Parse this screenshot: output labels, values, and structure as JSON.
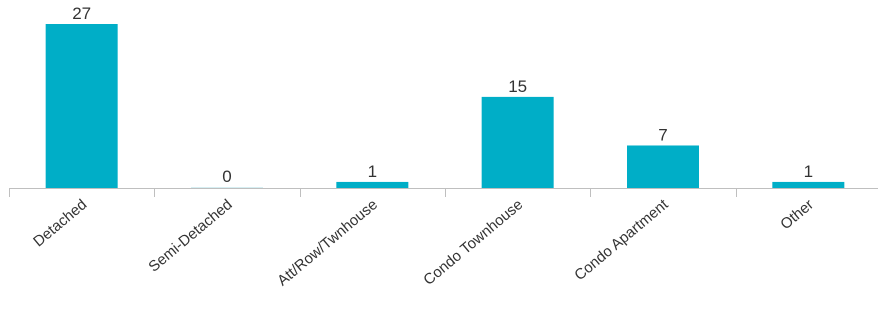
{
  "chart_data": {
    "type": "bar",
    "categories": [
      "Detached",
      "Semi-Detached",
      "Att/Row/Twnhouse",
      "Condo Townhouse",
      "Condo Apartment",
      "Other"
    ],
    "values": [
      27,
      0,
      1,
      15,
      7,
      1
    ],
    "ylim": [
      0,
      27
    ],
    "grid": false,
    "legend": "none",
    "bar_color": "#00AEC7",
    "axis_color": "#bfbfbf",
    "label_color": "#333333"
  }
}
